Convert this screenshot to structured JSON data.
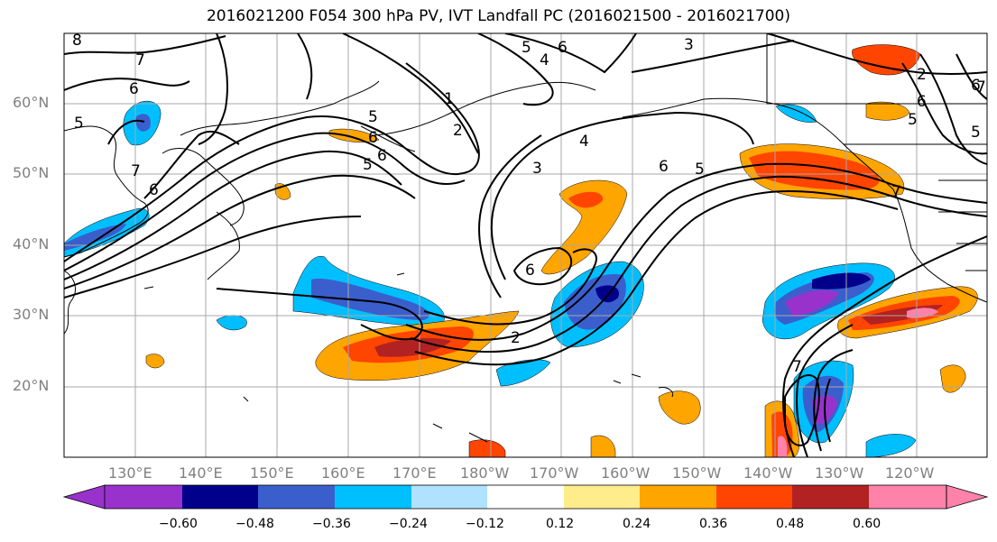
{
  "title": "2016021200 F054 300 hPa PV, IVT Landfall PC (2016021500 - 2016021700)",
  "lat_labels": [
    "60°N",
    "50°N",
    "40°N",
    "30°N",
    "20°N"
  ],
  "lon_labels": [
    "130°E",
    "140°E",
    "150°E",
    "160°E",
    "170°E",
    "180°W",
    "170°W",
    "160°W",
    "150°W",
    "140°W",
    "130°W",
    "120°W"
  ],
  "colorbar": {
    "colors": [
      "#9932CC",
      "#00008B",
      "#3A5FCD",
      "#00BFFF",
      "#B0E2FF",
      "#FFFFFF",
      "#FFEC8B",
      "#FFA500",
      "#FF4500",
      "#B22222",
      "#FF82AB"
    ],
    "tick_labels": [
      "−0.60",
      "−0.48",
      "−0.36",
      "−0.24",
      "−0.12",
      "0.12",
      "0.24",
      "0.36",
      "0.48",
      "0.60"
    ]
  },
  "contour_labels": [
    "8",
    "7",
    "6",
    "5",
    "6",
    "7",
    "6",
    "4",
    "5",
    "1",
    "2",
    "5",
    "6",
    "5",
    "6",
    "3",
    "4",
    "3",
    "6",
    "6",
    "5",
    "2",
    "7",
    "7",
    "6",
    "5",
    "2",
    "5",
    "6",
    "7"
  ]
}
